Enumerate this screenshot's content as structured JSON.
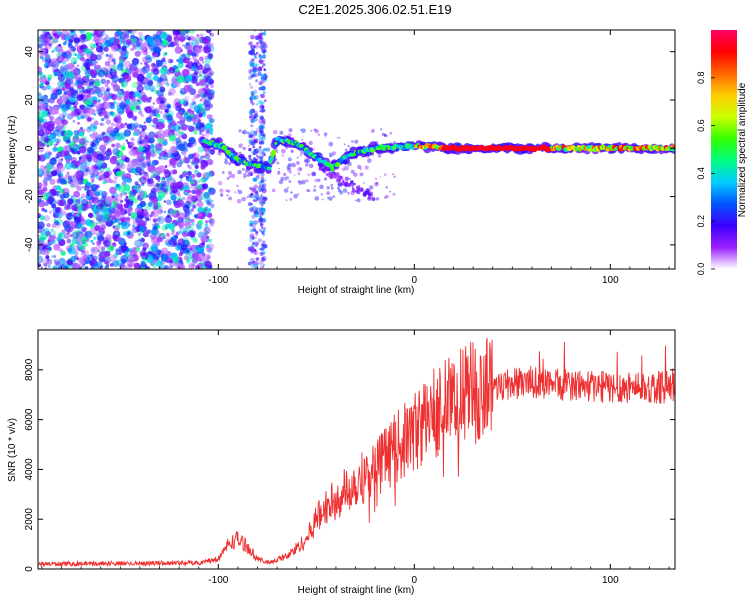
{
  "figure_title": "C2E1.2025.306.02.51.E19",
  "chart_data": [
    {
      "type": "heatmap",
      "title": "C2E1.2025.306.02.51.E19",
      "xlabel": "Height of straight line (km)",
      "ylabel": "Frequency (Hz)",
      "xlim": [
        -192,
        133
      ],
      "ylim": [
        -50,
        49
      ],
      "xticks": [
        -100,
        0,
        100
      ],
      "yticks": [
        -40,
        -20,
        0,
        20,
        40
      ],
      "xtick_labels": [
        "-100",
        "0",
        "100"
      ],
      "ytick_labels": [
        "-40",
        "-20",
        "0",
        "20",
        "40"
      ],
      "colorbar": {
        "label": "Normalized spectral amplitude",
        "range": [
          0,
          1
        ],
        "ticks": [
          0,
          0.2,
          0.4,
          0.6,
          0.8
        ],
        "tick_labels": [
          "0.0",
          "0.2",
          "0.4",
          "0.6",
          "0.8"
        ],
        "colors": [
          "#ffffff",
          "#9a1fff",
          "#3c00ff",
          "#0055ff",
          "#00ccff",
          "#00ff80",
          "#33ff00",
          "#ccff00",
          "#ffcc00",
          "#ff6600",
          "#ff0000",
          "#ff0066"
        ]
      },
      "features": {
        "noise_region_x": [
          -192,
          -103
        ],
        "carrier_track": [
          {
            "x": -108,
            "y": 3
          },
          {
            "x": -98,
            "y": 1
          },
          {
            "x": -92,
            "y": -4
          },
          {
            "x": -84,
            "y": -7
          },
          {
            "x": -74,
            "y": -8
          },
          {
            "x": -70,
            "y": 4
          },
          {
            "x": -60,
            "y": 2
          },
          {
            "x": -50,
            "y": -4
          },
          {
            "x": -42,
            "y": -8
          },
          {
            "x": -34,
            "y": -3
          },
          {
            "x": -20,
            "y": 0
          },
          {
            "x": 0,
            "y": 1
          },
          {
            "x": 20,
            "y": 0
          },
          {
            "x": 60,
            "y": 0
          },
          {
            "x": 100,
            "y": 0
          },
          {
            "x": 133,
            "y": 0
          }
        ]
      }
    },
    {
      "type": "line",
      "xlabel": "Height of straight line (km)",
      "ylabel": "SNR (10 * v/v)",
      "xlim": [
        -192,
        133
      ],
      "ylim": [
        0,
        9600
      ],
      "xticks": [
        -100,
        0,
        100
      ],
      "yticks": [
        0,
        2000,
        4000,
        6000,
        8000
      ],
      "xtick_labels": [
        "-100",
        "0",
        "100"
      ],
      "ytick_labels": [
        "0",
        "2000",
        "4000",
        "6000",
        "8000"
      ],
      "series": [
        {
          "name": "SNR",
          "color": "#ef3030",
          "envelope_x": [
            -192,
            -110,
            -100,
            -95,
            -90,
            -85,
            -80,
            -75,
            -65,
            -55,
            -50,
            -45,
            -40,
            -30,
            -20,
            -10,
            0,
            10,
            20,
            30,
            40,
            60,
            80,
            100,
            120,
            133
          ],
          "envelope_y": [
            200,
            250,
            400,
            1000,
            1200,
            900,
            400,
            250,
            500,
            1200,
            2000,
            2500,
            2800,
            3500,
            4000,
            4800,
            5500,
            6300,
            6800,
            7100,
            7400,
            7500,
            7400,
            7300,
            7300,
            7300
          ],
          "noise": 0.09
        }
      ]
    }
  ]
}
